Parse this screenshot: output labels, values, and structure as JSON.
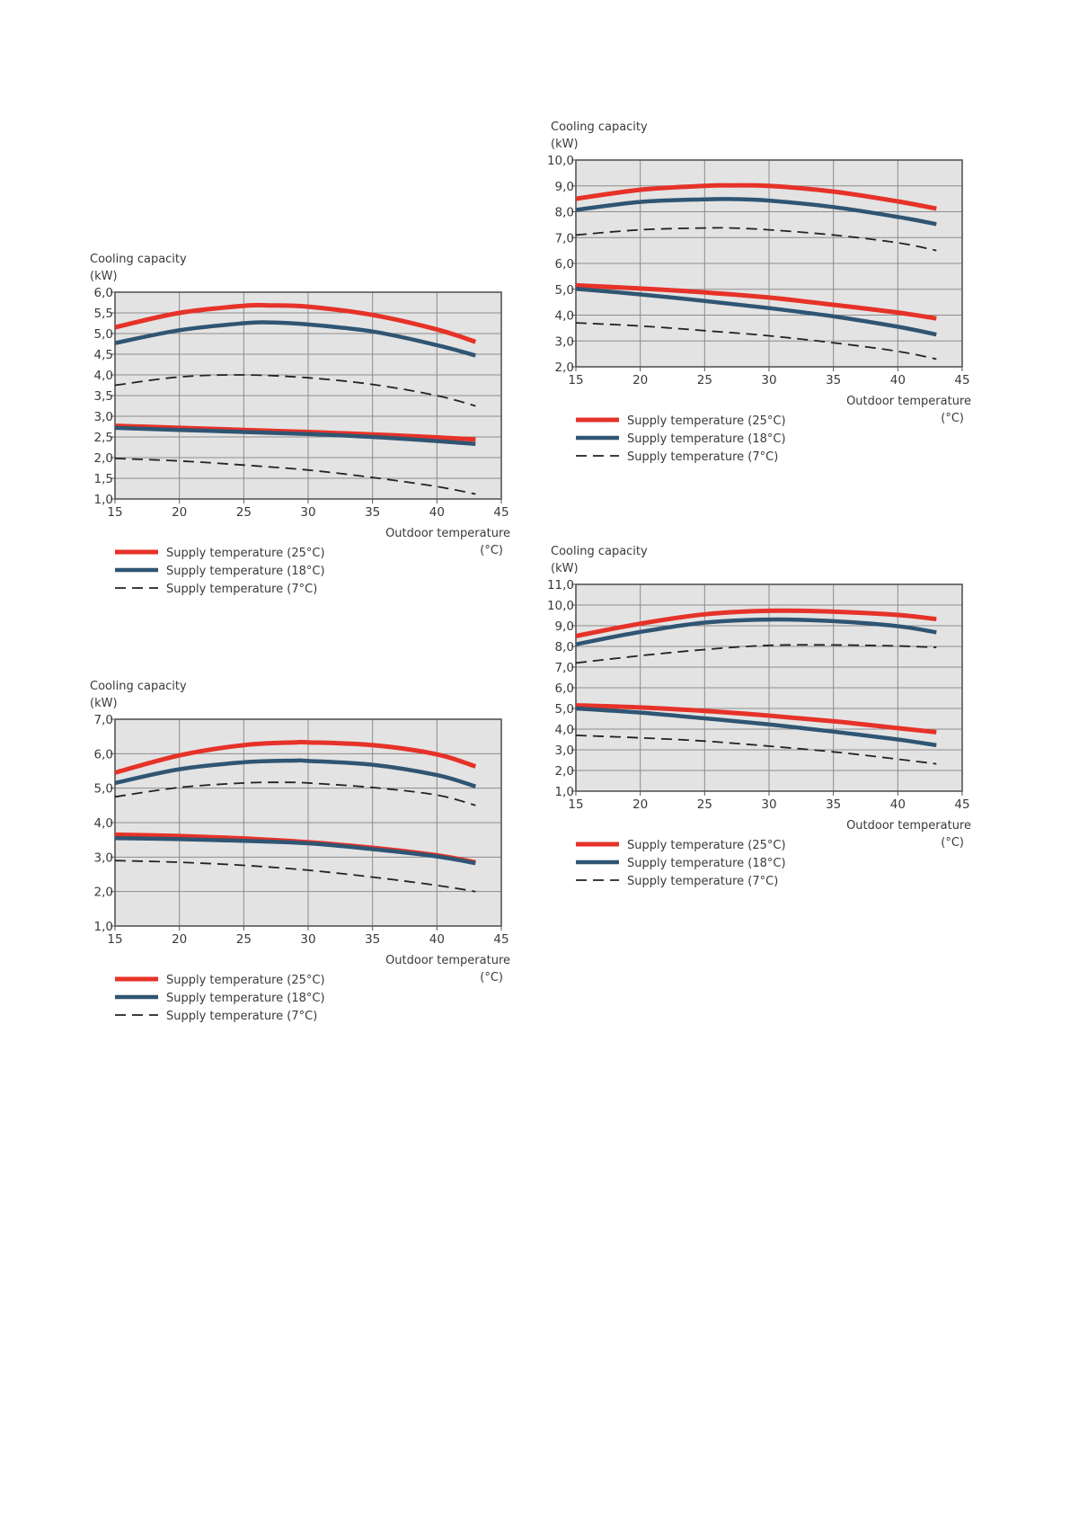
{
  "page_data_note": "",
  "colors": {
    "supply_25": "#e63228",
    "supply_18": "#2f5573",
    "supply_7": "#222222",
    "plot_bg": "#e3e3e3",
    "grid": "#8c8c8c"
  },
  "chart_data": [
    {
      "type": "line",
      "ylabel_line1": "Cooling capacity",
      "ylabel_line2": "(kW)",
      "xlabel_line1": "Outdoor temperature",
      "xlabel_line2": "(°C)",
      "xlim": [
        15,
        45
      ],
      "ylim": [
        1.0,
        6.0
      ],
      "x_ticks": [
        "15",
        "20",
        "25",
        "30",
        "35",
        "40",
        "45"
      ],
      "y_ticks": [
        "1,0",
        "1,5",
        "2,0",
        "2,5",
        "3,0",
        "3,5",
        "4,0",
        "4,5",
        "5,0",
        "5,5",
        "6,0"
      ],
      "grid": true,
      "legend_position": "bottom-left",
      "series": [
        {
          "name": "Supply temperature (25°C)",
          "style": "red",
          "x": [
            15,
            20,
            25,
            27,
            30,
            35,
            40,
            43
          ],
          "y": [
            5.15,
            5.5,
            5.67,
            5.68,
            5.65,
            5.45,
            5.1,
            4.8
          ]
        },
        {
          "name": "Supply temperature (18°C)",
          "style": "blue",
          "x": [
            15,
            20,
            25,
            27,
            30,
            35,
            40,
            43
          ],
          "y": [
            4.77,
            5.08,
            5.25,
            5.27,
            5.22,
            5.05,
            4.72,
            4.47
          ]
        },
        {
          "name": "Supply temperature (7°C)",
          "style": "dashed",
          "x": [
            15,
            20,
            25,
            30,
            35,
            40,
            43
          ],
          "y": [
            3.75,
            3.95,
            4.0,
            3.93,
            3.77,
            3.5,
            3.25
          ]
        },
        {
          "name": "",
          "style": "red",
          "x": [
            15,
            20,
            25,
            30,
            35,
            40,
            43
          ],
          "y": [
            2.77,
            2.72,
            2.67,
            2.62,
            2.56,
            2.49,
            2.44
          ]
        },
        {
          "name": "",
          "style": "blue",
          "x": [
            15,
            20,
            25,
            30,
            35,
            40,
            43
          ],
          "y": [
            2.72,
            2.67,
            2.62,
            2.57,
            2.5,
            2.4,
            2.33
          ]
        },
        {
          "name": "",
          "style": "dashed",
          "x": [
            15,
            20,
            25,
            30,
            35,
            40,
            43
          ],
          "y": [
            1.98,
            1.92,
            1.82,
            1.7,
            1.52,
            1.3,
            1.12
          ]
        }
      ]
    },
    {
      "type": "line",
      "ylabel_line1": "Cooling capacity",
      "ylabel_line2": "(kW)",
      "xlabel_line1": "Outdoor temperature",
      "xlabel_line2": "(°C)",
      "xlim": [
        15,
        45
      ],
      "ylim": [
        1.0,
        7.0
      ],
      "x_ticks": [
        "15",
        "20",
        "25",
        "30",
        "35",
        "40",
        "45"
      ],
      "y_ticks": [
        "1,0",
        "2,0",
        "3,0",
        "4,0",
        "5,0",
        "6,0",
        "7,0"
      ],
      "grid": true,
      "legend_position": "bottom-left",
      "series": [
        {
          "name": "Supply temperature (25°C)",
          "style": "red",
          "x": [
            15,
            20,
            25,
            29,
            30,
            35,
            40,
            43
          ],
          "y": [
            5.45,
            5.95,
            6.25,
            6.33,
            6.33,
            6.25,
            5.98,
            5.63
          ]
        },
        {
          "name": "Supply temperature (18°C)",
          "style": "blue",
          "x": [
            15,
            20,
            25,
            29,
            30,
            35,
            40,
            43
          ],
          "y": [
            5.15,
            5.55,
            5.75,
            5.8,
            5.79,
            5.68,
            5.38,
            5.05
          ]
        },
        {
          "name": "Supply temperature (7°C)",
          "style": "dashed",
          "x": [
            15,
            20,
            25,
            28,
            30,
            35,
            40,
            43
          ],
          "y": [
            4.75,
            5.02,
            5.15,
            5.17,
            5.15,
            5.02,
            4.8,
            4.5
          ]
        },
        {
          "name": "",
          "style": "red",
          "x": [
            15,
            20,
            25,
            30,
            35,
            40,
            43
          ],
          "y": [
            3.65,
            3.61,
            3.54,
            3.43,
            3.27,
            3.05,
            2.85
          ]
        },
        {
          "name": "",
          "style": "blue",
          "x": [
            15,
            20,
            25,
            30,
            35,
            40,
            43
          ],
          "y": [
            3.55,
            3.52,
            3.47,
            3.4,
            3.23,
            3.02,
            2.82
          ]
        },
        {
          "name": "",
          "style": "dashed",
          "x": [
            15,
            20,
            25,
            30,
            35,
            40,
            43
          ],
          "y": [
            2.9,
            2.85,
            2.76,
            2.62,
            2.42,
            2.18,
            2.0
          ]
        }
      ]
    },
    {
      "type": "line",
      "ylabel_line1": "Cooling capacity",
      "ylabel_line2": "(kW)",
      "xlabel_line1": "Outdoor temperature",
      "xlabel_line2": "(°C)",
      "xlim": [
        15,
        45
      ],
      "ylim": [
        2.0,
        10.0
      ],
      "x_ticks": [
        "15",
        "20",
        "25",
        "30",
        "35",
        "40",
        "45"
      ],
      "y_ticks": [
        "2,0",
        "3,0",
        "4,0",
        "5,0",
        "6,0",
        "7,0",
        "8,0",
        "9,0",
        "10,0"
      ],
      "grid": true,
      "legend_position": "bottom-left",
      "series": [
        {
          "name": "Supply temperature (25°C)",
          "style": "red",
          "x": [
            15,
            20,
            25,
            27,
            30,
            35,
            40,
            43
          ],
          "y": [
            8.5,
            8.85,
            9.0,
            9.02,
            9.0,
            8.78,
            8.4,
            8.12
          ]
        },
        {
          "name": "Supply temperature (18°C)",
          "style": "blue",
          "x": [
            15,
            20,
            25,
            27,
            30,
            35,
            40,
            43
          ],
          "y": [
            8.07,
            8.38,
            8.48,
            8.49,
            8.43,
            8.18,
            7.8,
            7.52
          ]
        },
        {
          "name": "Supply temperature (7°C)",
          "style": "dashed",
          "x": [
            15,
            20,
            25,
            27,
            30,
            35,
            40,
            43
          ],
          "y": [
            7.1,
            7.3,
            7.37,
            7.37,
            7.3,
            7.1,
            6.8,
            6.5
          ]
        },
        {
          "name": "",
          "style": "red",
          "x": [
            15,
            20,
            25,
            30,
            35,
            40,
            43
          ],
          "y": [
            5.15,
            5.03,
            4.88,
            4.68,
            4.4,
            4.1,
            3.87
          ]
        },
        {
          "name": "",
          "style": "blue",
          "x": [
            15,
            20,
            25,
            30,
            35,
            40,
            43
          ],
          "y": [
            5.02,
            4.8,
            4.55,
            4.27,
            3.95,
            3.55,
            3.25
          ]
        },
        {
          "name": "",
          "style": "dashed",
          "x": [
            15,
            20,
            25,
            30,
            35,
            40,
            43
          ],
          "y": [
            3.7,
            3.58,
            3.4,
            3.2,
            2.93,
            2.6,
            2.3
          ]
        }
      ]
    },
    {
      "type": "line",
      "ylabel_line1": "Cooling capacity",
      "ylabel_line2": "(kW)",
      "xlabel_line1": "Outdoor temperature",
      "xlabel_line2": "(°C)",
      "xlim": [
        15,
        45
      ],
      "ylim": [
        1.0,
        11.0
      ],
      "x_ticks": [
        "15",
        "20",
        "25",
        "30",
        "35",
        "40",
        "45"
      ],
      "y_ticks": [
        "1,0",
        "2,0",
        "3,0",
        "4,0",
        "5,0",
        "6,0",
        "7,0",
        "8,0",
        "9,0",
        "10,0",
        "11,0"
      ],
      "grid": true,
      "legend_position": "bottom-left",
      "series": [
        {
          "name": "Supply temperature (25°C)",
          "style": "red",
          "x": [
            15,
            20,
            25,
            30,
            35,
            40,
            43
          ],
          "y": [
            8.5,
            9.1,
            9.55,
            9.72,
            9.68,
            9.52,
            9.32
          ]
        },
        {
          "name": "Supply temperature (18°C)",
          "style": "blue",
          "x": [
            15,
            20,
            25,
            30,
            35,
            40,
            43
          ],
          "y": [
            8.1,
            8.7,
            9.15,
            9.3,
            9.22,
            8.98,
            8.68
          ]
        },
        {
          "name": "Supply temperature (7°C)",
          "style": "dashed",
          "x": [
            15,
            20,
            25,
            30,
            35,
            40,
            43
          ],
          "y": [
            7.2,
            7.55,
            7.85,
            8.05,
            8.07,
            8.02,
            7.95
          ]
        },
        {
          "name": "",
          "style": "red",
          "x": [
            15,
            20,
            25,
            30,
            35,
            40,
            43
          ],
          "y": [
            5.15,
            5.05,
            4.88,
            4.65,
            4.38,
            4.05,
            3.85
          ]
        },
        {
          "name": "",
          "style": "blue",
          "x": [
            15,
            20,
            25,
            30,
            35,
            40,
            43
          ],
          "y": [
            5.0,
            4.8,
            4.52,
            4.23,
            3.88,
            3.5,
            3.22
          ]
        },
        {
          "name": "",
          "style": "dashed",
          "x": [
            15,
            20,
            25,
            30,
            35,
            40,
            43
          ],
          "y": [
            3.7,
            3.58,
            3.42,
            3.18,
            2.9,
            2.55,
            2.32
          ]
        }
      ]
    }
  ]
}
